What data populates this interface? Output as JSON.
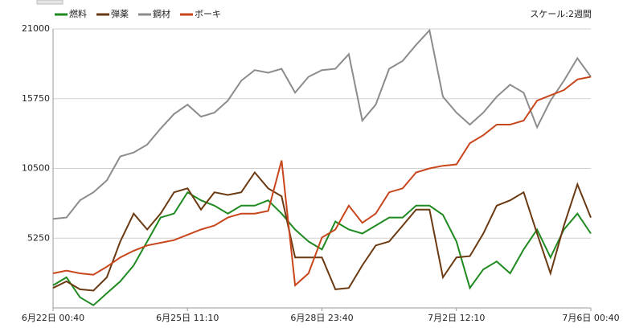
{
  "chart_data": {
    "type": "line",
    "scale_label": "スケール:2週間",
    "categories": [
      "6月22日 00:40",
      null,
      null,
      null,
      null,
      null,
      null,
      null,
      null,
      null,
      "6月25日 11:10",
      null,
      null,
      null,
      null,
      null,
      null,
      null,
      null,
      null,
      "6月28日 23:40",
      null,
      null,
      null,
      null,
      null,
      null,
      null,
      null,
      null,
      "7月2日 12:10",
      null,
      null,
      null,
      null,
      null,
      null,
      null,
      null,
      null,
      "7月6日 00:40"
    ],
    "series": [
      {
        "name": "燃料",
        "color": "#1f8a1f",
        "values": [
          1700,
          2300,
          800,
          200,
          1100,
          2000,
          3200,
          5000,
          6800,
          7100,
          8700,
          8100,
          7700,
          7100,
          7700,
          7700,
          8100,
          7100,
          5900,
          5000,
          4400,
          6500,
          5900,
          5600,
          6200,
          6800,
          6800,
          7700,
          7700,
          7000,
          5000,
          1500,
          2900,
          3500,
          2600,
          4400,
          5900,
          3800,
          5900,
          7100,
          5600
        ]
      },
      {
        "name": "弾薬",
        "color": "#6b3a12",
        "values": [
          1500,
          2000,
          1400,
          1300,
          2300,
          5000,
          7100,
          5900,
          7100,
          8700,
          9000,
          7400,
          8700,
          8500,
          8700,
          10200,
          9000,
          8400,
          3800,
          3800,
          3800,
          1400,
          1500,
          3200,
          4700,
          5000,
          6200,
          7400,
          7400,
          2300,
          3800,
          3900,
          5600,
          7700,
          8100,
          8700,
          5600,
          2600,
          6200,
          9300,
          6800
        ]
      },
      {
        "name": "鋼材",
        "color": "#8c8c8c",
        "values": [
          6700,
          6800,
          8100,
          8700,
          9600,
          11400,
          11700,
          12300,
          13500,
          14600,
          15300,
          14400,
          14700,
          15600,
          17100,
          17900,
          17700,
          18000,
          16200,
          17400,
          17900,
          18000,
          19100,
          14100,
          15300,
          18000,
          18600,
          19800,
          20900,
          15900,
          14700,
          13800,
          14700,
          15900,
          16800,
          16200,
          13600,
          15600,
          17100,
          18800,
          17400
        ]
      },
      {
        "name": "ボーキ",
        "color": "#c8461c",
        "values": [
          2600,
          2800,
          2600,
          2500,
          3100,
          3800,
          4300,
          4700,
          4900,
          5100,
          5500,
          5900,
          6200,
          6800,
          7100,
          7100,
          7300,
          11100,
          1700,
          2600,
          5300,
          5900,
          7700,
          6400,
          7100,
          8700,
          9000,
          10200,
          10500,
          10700,
          10800,
          12400,
          13000,
          13800,
          13800,
          14100,
          15600,
          16000,
          16400,
          17200,
          17400
        ]
      }
    ],
    "ylim": [
      0,
      21000
    ],
    "yticks": [
      5250,
      10500,
      15750,
      21000
    ],
    "grid": true
  }
}
